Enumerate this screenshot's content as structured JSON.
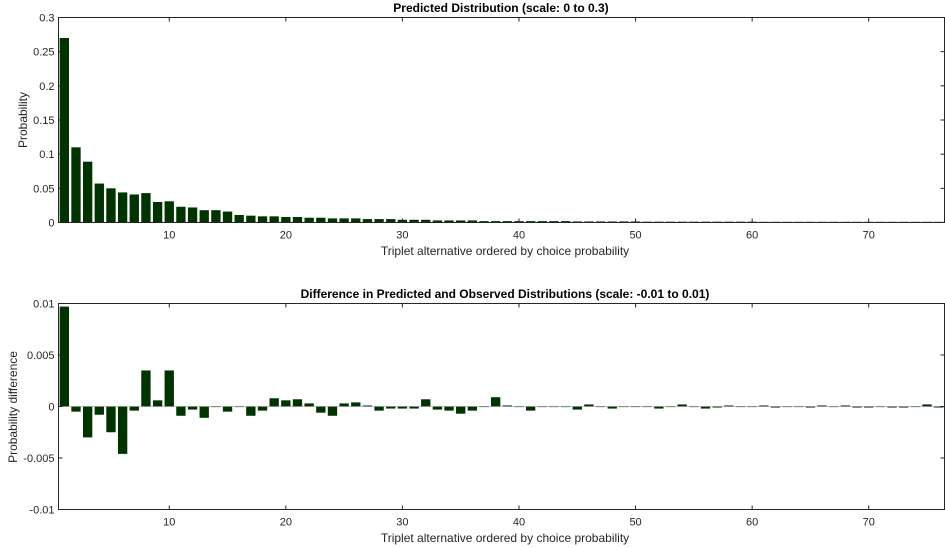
{
  "chart_data": [
    {
      "type": "bar",
      "title": "Predicted Distribution (scale: 0 to 0.3)",
      "xlabel": "Triplet alternative ordered by choice probability",
      "ylabel": "Probability",
      "xlim": [
        0.5,
        76.5
      ],
      "ylim": [
        0,
        0.3
      ],
      "xticks": [
        10,
        20,
        30,
        40,
        50,
        60,
        70
      ],
      "xtick_labels": [
        "10",
        "20",
        "30",
        "40",
        "50",
        "60",
        "70"
      ],
      "yticks": [
        0,
        0.05,
        0.1,
        0.15,
        0.2,
        0.25,
        0.3
      ],
      "ytick_labels": [
        "0",
        "0.05",
        "0.1",
        "0.15",
        "0.2",
        "0.25",
        "0.3"
      ],
      "bar_color": "#003300",
      "grid": false,
      "values": [
        0.27,
        0.11,
        0.089,
        0.057,
        0.05,
        0.044,
        0.041,
        0.043,
        0.03,
        0.031,
        0.023,
        0.022,
        0.018,
        0.018,
        0.016,
        0.011,
        0.01,
        0.009,
        0.009,
        0.008,
        0.008,
        0.007,
        0.007,
        0.006,
        0.006,
        0.006,
        0.005,
        0.005,
        0.005,
        0.004,
        0.004,
        0.004,
        0.003,
        0.003,
        0.003,
        0.003,
        0.002,
        0.002,
        0.002,
        0.002,
        0.002,
        0.002,
        0.002,
        0.002,
        0.0015,
        0.0015,
        0.0015,
        0.0015,
        0.0015,
        0.0015,
        0.0012,
        0.0012,
        0.0012,
        0.0012,
        0.0012,
        0.0012,
        0.0012,
        0.0012,
        0.0012,
        0.0012,
        0.001,
        0.001,
        0.001,
        0.001,
        0.001,
        0.001,
        0.001,
        0.001,
        0.001,
        0.001,
        0.001,
        0.001,
        0.001,
        0.001,
        0.001,
        0.001
      ]
    },
    {
      "type": "bar",
      "title": "Difference in Predicted and Observed Distributions (scale: -0.01 to 0.01)",
      "xlabel": "Triplet alternative ordered by choice probability",
      "ylabel": "Probability difference",
      "xlim": [
        0.5,
        76.5
      ],
      "ylim": [
        -0.01,
        0.01
      ],
      "xticks": [
        10,
        20,
        30,
        40,
        50,
        60,
        70
      ],
      "xtick_labels": [
        "10",
        "20",
        "30",
        "40",
        "50",
        "60",
        "70"
      ],
      "yticks": [
        -0.01,
        -0.005,
        0,
        0.005,
        0.01
      ],
      "ytick_labels": [
        "-0.01",
        "-0.005",
        "0",
        "0.005",
        "0.01"
      ],
      "bar_color": "#003300",
      "grid": false,
      "values": [
        0.0097,
        -0.0005,
        -0.003,
        -0.0008,
        -0.0025,
        -0.0046,
        -0.0004,
        0.0035,
        0.0006,
        0.0035,
        -0.0009,
        -0.0003,
        -0.0011,
        0.0,
        -0.0005,
        0.0,
        -0.0009,
        -0.0004,
        0.0008,
        0.0006,
        0.0007,
        0.0003,
        -0.0006,
        -0.0009,
        0.0003,
        0.0004,
        0.0001,
        -0.0004,
        -0.0002,
        -0.0002,
        -0.0002,
        0.0007,
        -0.0003,
        -0.0004,
        -0.0007,
        -0.0004,
        0.0,
        0.0009,
        0.0001,
        0.0,
        -0.0004,
        0.0,
        0.0,
        0.0,
        -0.0003,
        0.0002,
        0.0,
        -0.0002,
        0.0,
        0.0,
        0.0,
        -0.0002,
        0.0,
        0.0002,
        0.0,
        -0.0002,
        -0.0001,
        0.0001,
        0.0,
        0.0,
        0.0001,
        -0.0001,
        0.0,
        0.0,
        -0.0001,
        0.0001,
        0.0,
        0.0001,
        -0.0001,
        -0.0001,
        0.0,
        -0.0001,
        -0.0001,
        0.0,
        0.0002,
        -0.0001
      ]
    }
  ]
}
